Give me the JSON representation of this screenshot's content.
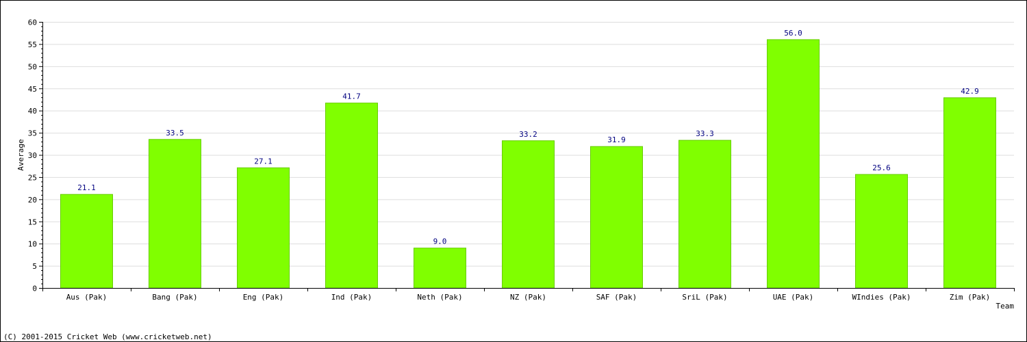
{
  "chart_data": {
    "type": "bar",
    "title": "",
    "xlabel": "Team",
    "ylabel": "Average",
    "ylim": [
      0,
      60
    ],
    "ytick_step": 5,
    "grid": true,
    "categories": [
      "Aus (Pak)",
      "Bang (Pak)",
      "Eng (Pak)",
      "Ind (Pak)",
      "Neth (Pak)",
      "NZ (Pak)",
      "SAF (Pak)",
      "SriL (Pak)",
      "UAE (Pak)",
      "WIndies (Pak)",
      "Zim (Pak)"
    ],
    "values": [
      21.1,
      33.5,
      27.1,
      41.7,
      9.0,
      33.2,
      31.9,
      33.3,
      56.0,
      25.6,
      42.9
    ],
    "value_labels": [
      "21.1",
      "33.5",
      "27.1",
      "41.7",
      "9.0",
      "33.2",
      "31.9",
      "33.3",
      "56.0",
      "25.6",
      "42.9"
    ],
    "bar_color": "#80ff00",
    "bar_edge_color": "#66cc00",
    "value_label_color": "#000080",
    "grid_color": "#dddddd"
  },
  "footer": {
    "copyright": "(C) 2001-2015 Cricket Web (www.cricketweb.net)"
  }
}
